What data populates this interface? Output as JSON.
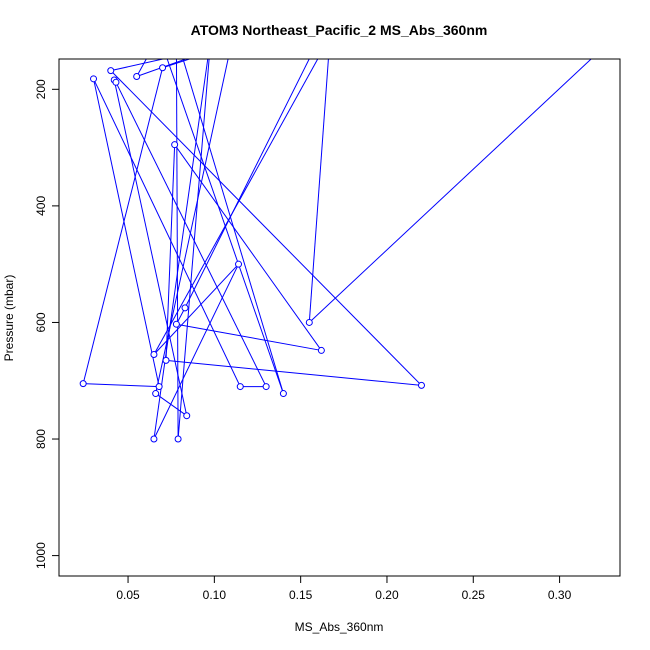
{
  "chart_data": {
    "type": "line",
    "title": "ATOM3 Northeast_Pacific_2 MS_Abs_360nm",
    "xlabel": "MS_Abs_360nm",
    "ylabel": "Pressure (mbar)",
    "xlim": [
      0.01,
      0.335
    ],
    "ylim": [
      1035,
      148
    ],
    "y_reversed": true,
    "x_ticks": [
      0.05,
      0.1,
      0.15,
      0.2,
      0.25,
      0.3
    ],
    "x_tick_labels": [
      "0.05",
      "0.10",
      "0.15",
      "0.20",
      "0.25",
      "0.30"
    ],
    "y_ticks": [
      200,
      400,
      600,
      800,
      1000
    ],
    "y_tick_labels": [
      "200",
      "400",
      "600",
      "800",
      "1000"
    ],
    "grid": false,
    "colors": {
      "series": "#0000ff",
      "axis": "#000000"
    },
    "series": [
      {
        "values": [
          [
            0.332,
            110
          ],
          [
            0.155,
            600
          ],
          [
            0.155,
            600
          ],
          [
            0.167,
            110
          ],
          [
            0.167,
            110
          ],
          [
            0.065,
            655
          ],
          [
            0.065,
            655
          ],
          [
            0.114,
            500
          ],
          [
            0.114,
            500
          ],
          [
            0.065,
            800
          ],
          [
            0.065,
            800
          ],
          [
            0.098,
            110
          ],
          [
            0.098,
            110
          ],
          [
            0.079,
            800
          ],
          [
            0.079,
            800
          ],
          [
            0.078,
            110
          ],
          [
            0.078,
            110
          ],
          [
            0.14,
            722
          ],
          [
            0.14,
            722
          ],
          [
            0.068,
            108
          ],
          [
            0.068,
            108
          ],
          [
            0.055,
            178
          ],
          [
            0.055,
            178
          ],
          [
            0.11,
            120
          ],
          [
            0.11,
            120
          ],
          [
            0.066,
            722
          ],
          [
            0.066,
            722
          ],
          [
            0.084,
            760
          ],
          [
            0.084,
            760
          ],
          [
            0.042,
            184
          ],
          [
            0.042,
            184
          ],
          [
            0.043,
            188
          ],
          [
            0.043,
            188
          ],
          [
            0.13,
            710
          ],
          [
            0.13,
            710
          ],
          [
            0.115,
            710
          ],
          [
            0.115,
            710
          ],
          [
            0.03,
            182
          ],
          [
            0.03,
            182
          ],
          [
            0.068,
            710
          ],
          [
            0.068,
            710
          ],
          [
            0.024,
            705
          ],
          [
            0.024,
            705
          ],
          [
            0.07,
            163
          ],
          [
            0.07,
            163
          ],
          [
            0.12,
            115
          ],
          [
            0.12,
            115
          ],
          [
            0.04,
            168
          ],
          [
            0.04,
            168
          ],
          [
            0.22,
            708
          ],
          [
            0.22,
            708
          ],
          [
            0.072,
            665
          ],
          [
            0.072,
            665
          ],
          [
            0.077,
            295
          ],
          [
            0.077,
            295
          ],
          [
            0.162,
            648
          ],
          [
            0.162,
            648
          ],
          [
            0.078,
            603
          ],
          [
            0.078,
            603
          ],
          [
            0.083,
            575
          ],
          [
            0.083,
            575
          ],
          [
            0.16,
            118
          ],
          [
            0.16,
            118
          ],
          [
            0.083,
            115
          ]
        ],
        "points": [
          [
            0.155,
            600
          ],
          [
            0.065,
            655
          ],
          [
            0.114,
            500
          ],
          [
            0.065,
            800
          ],
          [
            0.079,
            800
          ],
          [
            0.14,
            722
          ],
          [
            0.055,
            178
          ],
          [
            0.066,
            722
          ],
          [
            0.084,
            760
          ],
          [
            0.042,
            184
          ],
          [
            0.043,
            188
          ],
          [
            0.13,
            710
          ],
          [
            0.115,
            710
          ],
          [
            0.03,
            182
          ],
          [
            0.068,
            710
          ],
          [
            0.024,
            705
          ],
          [
            0.07,
            163
          ],
          [
            0.04,
            168
          ],
          [
            0.22,
            708
          ],
          [
            0.072,
            665
          ],
          [
            0.077,
            295
          ],
          [
            0.162,
            648
          ],
          [
            0.078,
            603
          ],
          [
            0.083,
            575
          ]
        ]
      }
    ]
  }
}
